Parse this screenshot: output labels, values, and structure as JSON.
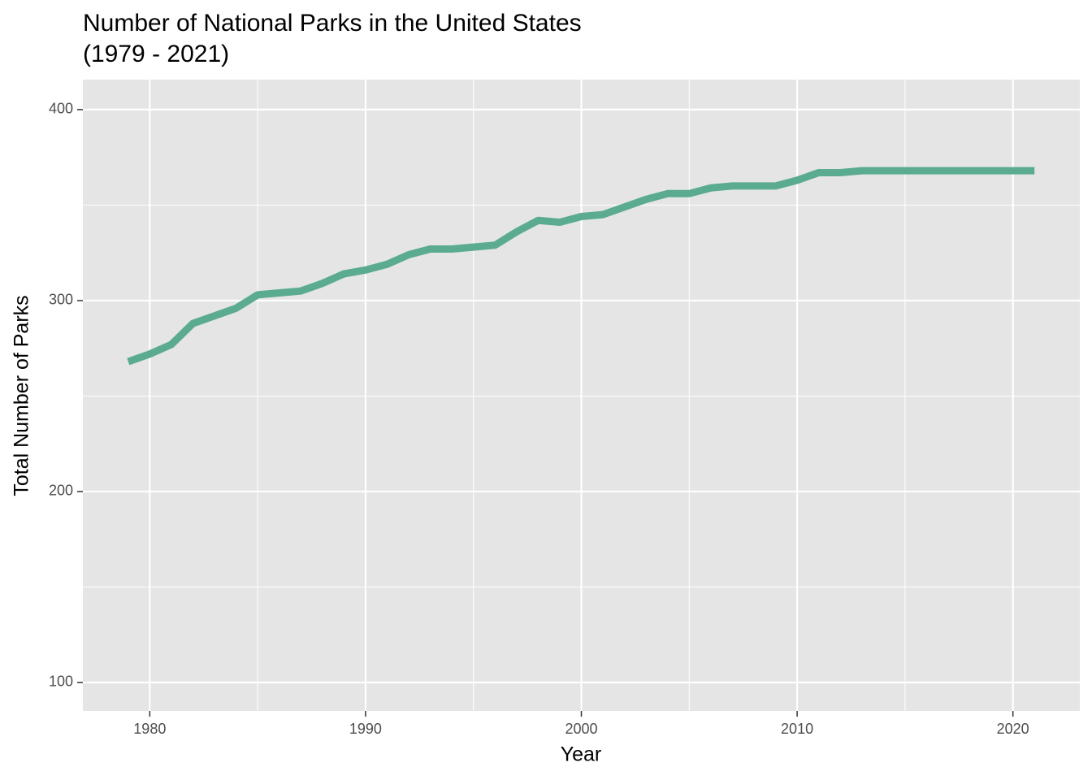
{
  "chart_data": {
    "type": "line",
    "title": "Number of National Parks in the United States",
    "subtitle": "(1979 - 2021)",
    "x_label": "Year",
    "y_label": "Total Number of Parks",
    "x": [
      1979,
      1980,
      1981,
      1982,
      1983,
      1984,
      1985,
      1986,
      1987,
      1988,
      1989,
      1990,
      1991,
      1992,
      1993,
      1994,
      1995,
      1996,
      1997,
      1998,
      1999,
      2000,
      2001,
      2002,
      2003,
      2004,
      2005,
      2006,
      2007,
      2008,
      2009,
      2010,
      2011,
      2012,
      2013,
      2014,
      2015,
      2016,
      2017,
      2018,
      2019,
      2020,
      2021
    ],
    "series": [
      {
        "name": "Total Number of Parks",
        "color": "#5aab90",
        "values": [
          268,
          272,
          277,
          288,
          292,
          296,
          303,
          304,
          305,
          309,
          314,
          316,
          319,
          324,
          327,
          327,
          328,
          329,
          336,
          342,
          341,
          344,
          345,
          349,
          353,
          356,
          356,
          359,
          360,
          360,
          360,
          363,
          367,
          367,
          368,
          368,
          368,
          368,
          368,
          368,
          368,
          368,
          368
        ]
      }
    ],
    "xlim": [
      1976.9,
      2023.1
    ],
    "ylim": [
      85.1,
      415.7
    ],
    "xticks": [
      1980,
      1990,
      2000,
      2010,
      2020
    ],
    "yticks": [
      100,
      200,
      300,
      400
    ],
    "x_minor_ticks": [
      1985,
      1995,
      2005,
      2015
    ],
    "y_minor_ticks": [
      150,
      250,
      350
    ],
    "grid": true
  }
}
